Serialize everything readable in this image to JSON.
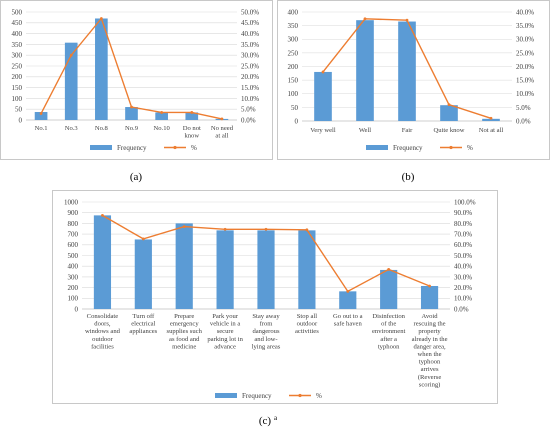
{
  "colors": {
    "bar": "#5b9bd5",
    "line": "#ed7d31"
  },
  "chart_data": [
    {
      "type": "bar",
      "panel_label": "(a)",
      "categories": [
        [
          "No.1"
        ],
        [
          "No.3"
        ],
        [
          "No.8"
        ],
        [
          "No.9"
        ],
        [
          "No.10"
        ],
        [
          "Do not",
          "know"
        ],
        [
          "No need",
          "at all"
        ]
      ],
      "series": [
        {
          "name": "Frequency",
          "type": "bar",
          "axis": "left",
          "values": [
            37,
            358,
            470,
            60,
            35,
            35,
            5
          ]
        },
        {
          "name": "%",
          "type": "line",
          "axis": "right",
          "values": [
            3.0,
            30.0,
            47.0,
            6.0,
            3.5,
            3.5,
            0.5
          ]
        }
      ],
      "left_ticks": [
        "0",
        "50",
        "100",
        "150",
        "200",
        "250",
        "300",
        "350",
        "400",
        "450",
        "500"
      ],
      "right_ticks": [
        "0.0%",
        "5.0%",
        "10.0%",
        "15.0%",
        "20.0%",
        "25.0%",
        "30.0%",
        "35.0%",
        "40.0%",
        "45.0%",
        "50.0%"
      ],
      "ylim_left": [
        0,
        500
      ],
      "ylim_right": [
        0,
        50
      ],
      "legend": {
        "placement": "bottom",
        "entries": [
          "Frequency",
          "%"
        ]
      }
    },
    {
      "type": "bar",
      "panel_label": "(b)",
      "categories": [
        [
          "Very well"
        ],
        [
          "Well"
        ],
        [
          "Fair"
        ],
        [
          "Quite know"
        ],
        [
          "Not at all"
        ]
      ],
      "series": [
        {
          "name": "Frequency",
          "type": "bar",
          "axis": "left",
          "values": [
            180,
            370,
            365,
            58,
            8
          ]
        },
        {
          "name": "%",
          "type": "line",
          "axis": "right",
          "values": [
            18.0,
            37.5,
            37.0,
            6.0,
            1.0
          ]
        }
      ],
      "left_ticks": [
        "0",
        "50",
        "100",
        "150",
        "200",
        "250",
        "300",
        "350",
        "400"
      ],
      "right_ticks": [
        "0.0%",
        "5.0%",
        "10.0%",
        "15.0%",
        "20.0%",
        "25.0%",
        "30.0%",
        "35.0%",
        "40.0%"
      ],
      "ylim_left": [
        0,
        400
      ],
      "ylim_right": [
        0,
        40
      ],
      "legend": {
        "placement": "bottom",
        "entries": [
          "Frequency",
          "%"
        ]
      }
    },
    {
      "type": "bar",
      "panel_label": "(c)",
      "panel_sup": "a",
      "categories": [
        [
          "Consolidate",
          "doors,",
          "windows and",
          "outdoor",
          "facilities"
        ],
        [
          "Turn off",
          "electrical",
          "appliances"
        ],
        [
          "Prepare",
          "emergency",
          "supplies such",
          "as food and",
          "medicine"
        ],
        [
          "Park your",
          "vehicle in a",
          "secure",
          "parking lot in",
          "advance"
        ],
        [
          "Stay away",
          "from",
          "dangerous",
          "and low-",
          "lying areas"
        ],
        [
          "Stop all",
          "outdoor",
          "activities"
        ],
        [
          "Go out to a",
          "safe haven"
        ],
        [
          "Disinfection",
          "of the",
          "environment",
          "after a",
          "typhoon"
        ],
        [
          "Avoid",
          "rescuing the",
          "property",
          "already in the",
          "danger area,",
          "when the",
          "typhoon",
          "arrives",
          "(Reverse",
          "scoring)"
        ]
      ],
      "series": [
        {
          "name": "Frequency",
          "type": "bar",
          "axis": "left",
          "values": [
            875,
            650,
            800,
            735,
            735,
            735,
            165,
            365,
            215
          ]
        },
        {
          "name": "%",
          "type": "line",
          "axis": "right",
          "values": [
            87.5,
            65.5,
            77.0,
            74.5,
            74.5,
            74.0,
            16.5,
            37.0,
            21.5
          ]
        }
      ],
      "left_ticks": [
        "0",
        "100",
        "200",
        "300",
        "400",
        "500",
        "600",
        "700",
        "800",
        "900",
        "1000"
      ],
      "right_ticks": [
        "0.0%",
        "10.0%",
        "20.0%",
        "30.0%",
        "40.0%",
        "50.0%",
        "60.0%",
        "70.0%",
        "80.0%",
        "90.0%",
        "100.0%"
      ],
      "ylim_left": [
        0,
        1000
      ],
      "ylim_right": [
        0,
        100
      ],
      "legend": {
        "placement": "bottom",
        "entries": [
          "Frequency",
          "%"
        ]
      }
    }
  ]
}
